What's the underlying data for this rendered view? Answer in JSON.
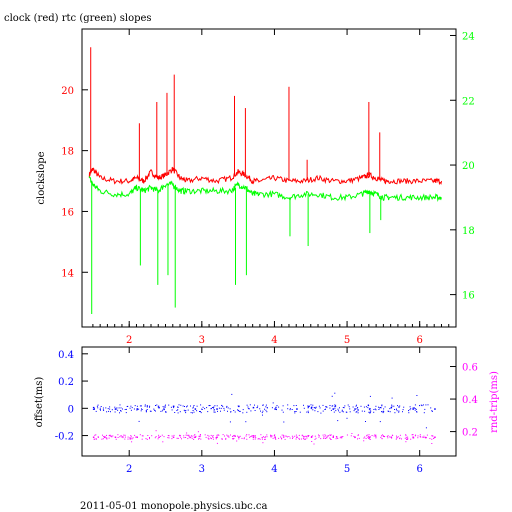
{
  "title": "clock (red) rtc (green) slopes",
  "footer": "2011-05-01 monopole.physics.ubc.ca",
  "colors": {
    "clock": "#ff0000",
    "rtc": "#00ff00",
    "offset": "#0000ff",
    "rndtrip": "#ff00ff",
    "axis": "#000000"
  },
  "chart_data": [
    {
      "type": "line",
      "title": "clock (red) rtc (green) slopes",
      "ylabel": "clockslope",
      "y2label": "",
      "xlim": [
        1.35,
        6.5
      ],
      "ylim": [
        12.2,
        22.0
      ],
      "y2lim": [
        15.0,
        24.2
      ],
      "xticks": [
        "2",
        "3",
        "4",
        "5",
        "6"
      ],
      "yticks": [
        "14",
        "16",
        "18",
        "20"
      ],
      "y2ticks": [
        "16",
        "18",
        "20",
        "22",
        "24"
      ],
      "series": [
        {
          "name": "clock",
          "axis": "left",
          "x": [
            1.45,
            1.5,
            1.6,
            1.8,
            2.0,
            2.1,
            2.2,
            2.3,
            2.4,
            2.5,
            2.6,
            2.7,
            2.8,
            3.0,
            3.2,
            3.4,
            3.5,
            3.6,
            3.7,
            3.8,
            4.0,
            4.2,
            4.4,
            4.6,
            4.8,
            5.0,
            5.2,
            5.3,
            5.4,
            5.5,
            5.6,
            5.8,
            6.0,
            6.2,
            6.3
          ],
          "y": [
            17.2,
            17.4,
            17.1,
            17.0,
            17.0,
            17.1,
            17.0,
            17.3,
            17.1,
            17.2,
            17.4,
            17.1,
            17.0,
            17.1,
            17.0,
            17.1,
            17.3,
            17.2,
            17.0,
            17.0,
            17.1,
            17.0,
            17.0,
            17.1,
            17.0,
            17.0,
            17.1,
            17.2,
            17.1,
            17.0,
            17.0,
            17.0,
            17.0,
            17.0,
            17.0
          ]
        },
        {
          "name": "rtc",
          "axis": "right",
          "x": [
            1.45,
            1.5,
            1.6,
            1.8,
            2.0,
            2.1,
            2.2,
            2.3,
            2.4,
            2.5,
            2.6,
            2.7,
            2.8,
            3.0,
            3.2,
            3.4,
            3.5,
            3.6,
            3.7,
            3.8,
            4.0,
            4.2,
            4.4,
            4.6,
            4.8,
            5.0,
            5.2,
            5.3,
            5.4,
            5.5,
            5.6,
            5.8,
            6.0,
            6.2,
            6.3
          ],
          "y": [
            19.6,
            19.4,
            19.2,
            19.1,
            19.1,
            19.3,
            19.2,
            19.3,
            19.2,
            19.4,
            19.4,
            19.2,
            19.2,
            19.2,
            19.2,
            19.2,
            19.4,
            19.3,
            19.1,
            19.1,
            19.1,
            19.0,
            19.1,
            19.1,
            19.0,
            19.0,
            19.1,
            19.2,
            19.1,
            19.0,
            19.0,
            19.0,
            19.0,
            19.0,
            19.0
          ]
        }
      ],
      "spikes": [
        {
          "x": 1.47,
          "clock_y": 21.4,
          "rtc_y": 15.4
        },
        {
          "x": 2.14,
          "clock_y": 18.9,
          "rtc_y": 16.9
        },
        {
          "x": 2.38,
          "clock_y": 19.6,
          "rtc_y": 16.3
        },
        {
          "x": 2.52,
          "clock_y": 19.9,
          "rtc_y": 16.6
        },
        {
          "x": 2.62,
          "clock_y": 20.5,
          "rtc_y": 15.6
        },
        {
          "x": 3.45,
          "clock_y": 19.8,
          "rtc_y": 16.3
        },
        {
          "x": 3.6,
          "clock_y": 19.4,
          "rtc_y": 16.6
        },
        {
          "x": 4.2,
          "clock_y": 20.1,
          "rtc_y": 17.8
        },
        {
          "x": 4.45,
          "clock_y": 17.7,
          "rtc_y": 17.5
        },
        {
          "x": 5.3,
          "clock_y": 19.6,
          "rtc_y": 17.9
        },
        {
          "x": 5.45,
          "clock_y": 18.6,
          "rtc_y": 18.3
        }
      ]
    },
    {
      "type": "scatter",
      "title": "",
      "ylabel": "offset(ms)",
      "y2label": "rnd-trip(ms)",
      "xlim": [
        1.35,
        6.5
      ],
      "ylim": [
        -0.35,
        0.45
      ],
      "y2lim": [
        0.05,
        0.72
      ],
      "xticks": [
        "2",
        "3",
        "4",
        "5",
        "6"
      ],
      "yticks": [
        "-0.2",
        "0",
        "0.2",
        "0.4"
      ],
      "y2ticks": [
        "0.2",
        "0.4",
        "0.6"
      ],
      "series": [
        {
          "name": "offset",
          "axis": "left",
          "baseline": 0.0,
          "x": [
            1.5,
            1.8,
            2.1,
            2.4,
            2.6,
            2.9,
            3.2,
            3.5,
            3.7,
            4.0,
            4.3,
            4.5,
            4.8,
            5.1,
            5.3,
            5.6,
            5.9,
            6.2
          ],
          "y": [
            0.01,
            0.0,
            0.0,
            0.01,
            0.02,
            0.0,
            0.0,
            0.02,
            0.01,
            0.0,
            0.0,
            0.01,
            0.0,
            0.0,
            0.0,
            0.01,
            0.0,
            0.0
          ]
        },
        {
          "name": "rnd-trip",
          "axis": "right",
          "baseline": 0.17,
          "x": [
            1.5,
            1.8,
            2.1,
            2.4,
            2.6,
            2.9,
            3.2,
            3.5,
            3.7,
            4.0,
            4.3,
            4.5,
            4.8,
            5.1,
            5.3,
            5.6,
            5.9,
            6.2
          ],
          "y": [
            0.17,
            0.17,
            0.17,
            0.17,
            0.17,
            0.17,
            0.17,
            0.17,
            0.17,
            0.17,
            0.17,
            0.17,
            0.17,
            0.17,
            0.17,
            0.17,
            0.17,
            0.17
          ]
        }
      ]
    }
  ]
}
